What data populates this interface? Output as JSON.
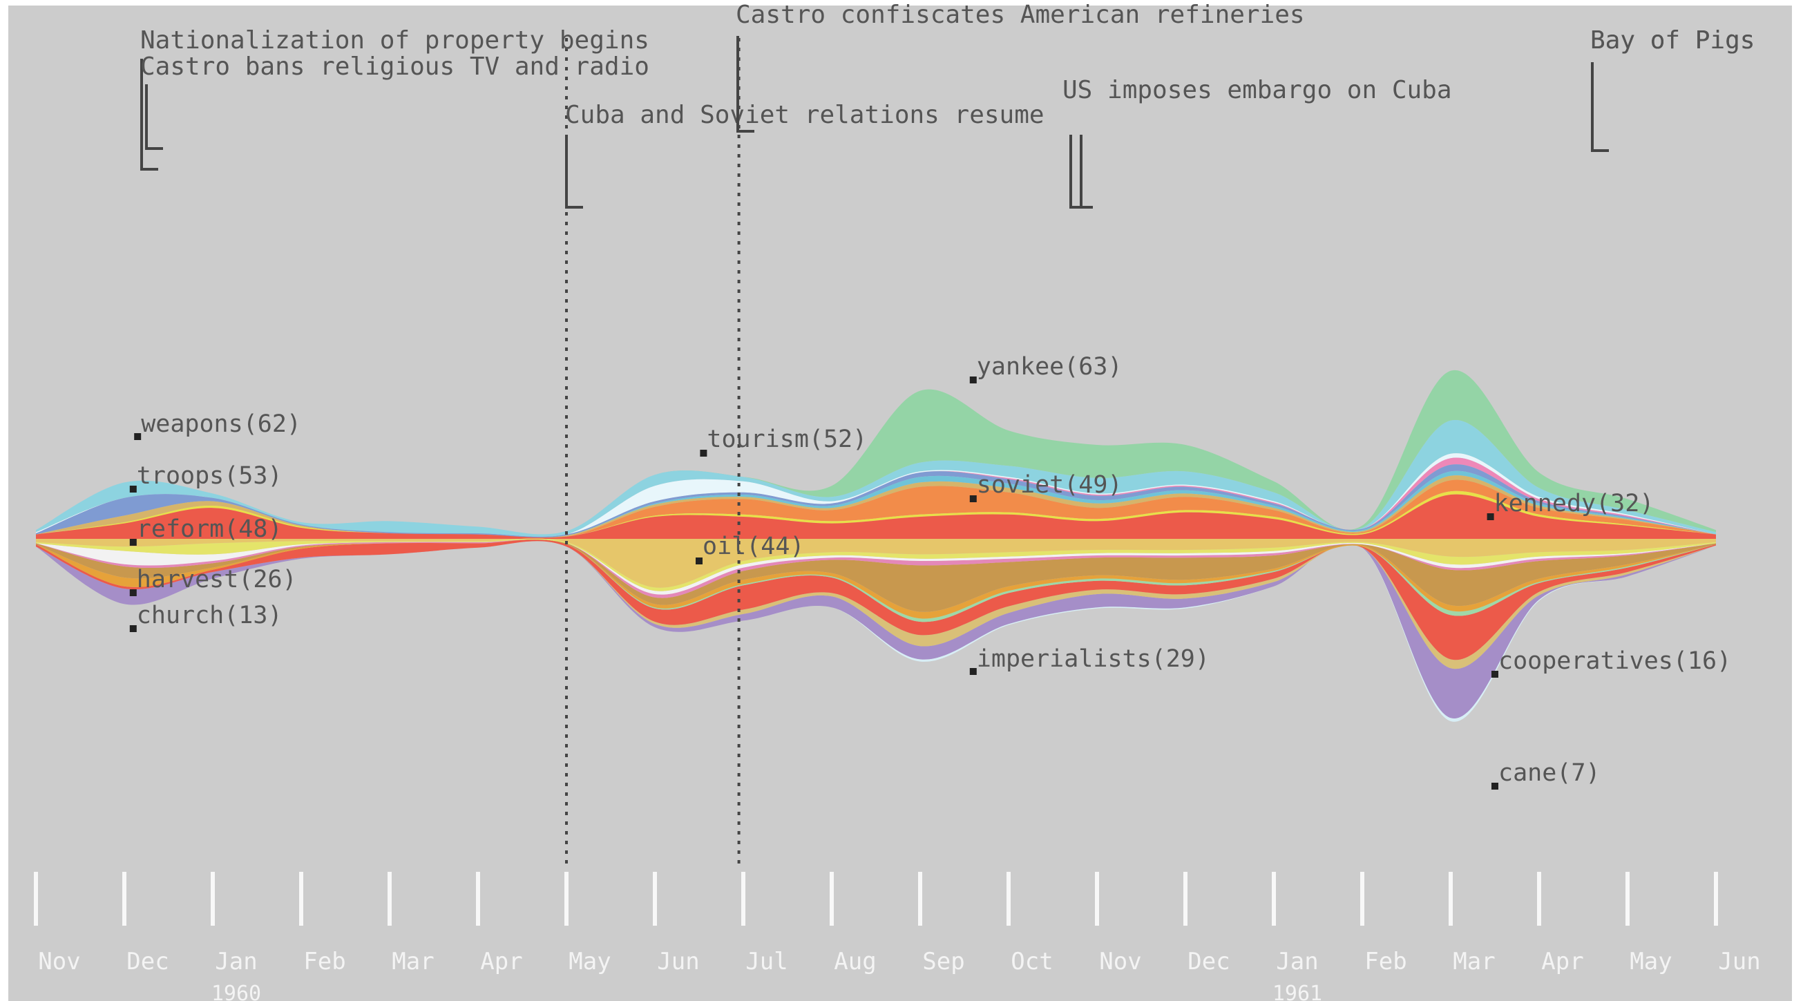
{
  "chart_data": {
    "type": "area",
    "style": "streamgraph",
    "x_unit": "month index (0 = Nov 1959, 19 = Jun 1961)",
    "months": [
      "Nov",
      "Dec",
      "Jan",
      "Feb",
      "Mar",
      "Apr",
      "May",
      "Jun",
      "Jul",
      "Aug",
      "Sep",
      "Oct",
      "Nov",
      "Dec",
      "Jan",
      "Feb",
      "Mar",
      "Apr",
      "May",
      "Jun"
    ],
    "years": [
      {
        "label": "1960",
        "month": 2
      },
      {
        "label": "1961",
        "month": 14
      }
    ],
    "events": [
      {
        "text": "Nationalization of property begins",
        "month": 1.0
      },
      {
        "text": "Castro bans religious TV and radio",
        "month": 1.0
      },
      {
        "text": "Cuba and Soviet relations resume",
        "month": 6.0
      },
      {
        "text": "Castro confiscates American refineries",
        "month": 7.95
      },
      {
        "text": "US imposes embargo on Cuba",
        "month": 11.7
      },
      {
        "text": "Bay of Pigs",
        "month": 17.4
      }
    ],
    "event_tail_partial": "Bay of Pigs ",
    "markers": [
      {
        "month": 6.0,
        "style": "dotted"
      },
      {
        "month": 7.95,
        "style": "dotted"
      }
    ],
    "term_labels": [
      {
        "text": "weapons(62)",
        "month": 1.15
      },
      {
        "text": "troops(53)",
        "month": 1.1
      },
      {
        "text": "reform(48)",
        "month": 1.1
      },
      {
        "text": "harvest(26)",
        "month": 1.1
      },
      {
        "text": "church(13)",
        "month": 1.1
      },
      {
        "text": "tourism(52)",
        "month": 7.55
      },
      {
        "text": "oil(44)",
        "month": 7.5
      },
      {
        "text": "yankee(63)",
        "month": 10.6
      },
      {
        "text": "soviet(49)",
        "month": 10.6
      },
      {
        "text": "imperialists(29)",
        "month": 10.6
      },
      {
        "text": "kennedy(32)",
        "month": 16.45
      },
      {
        "text": "cooperatives(16)",
        "month": 16.5
      },
      {
        "text": "cane(7)",
        "month": 16.5
      }
    ],
    "series_above": [
      {
        "name": "yankee",
        "color": "#94d4a6",
        "values": [
          0,
          0,
          0,
          0,
          0,
          0,
          0,
          0,
          0,
          10,
          65,
          32,
          30,
          24,
          10,
          2,
          45,
          14,
          10,
          2
        ]
      },
      {
        "name": "weapons",
        "color": "#8dd3e0",
        "values": [
          2,
          14,
          4,
          2,
          10,
          6,
          3,
          10,
          4,
          4,
          8,
          10,
          14,
          12,
          8,
          1,
          30,
          8,
          4,
          2
        ]
      },
      {
        "name": "tourism",
        "color": "#e8f6fb",
        "values": [
          1,
          0,
          0,
          0,
          0,
          0,
          0,
          14,
          10,
          2,
          1,
          1,
          1,
          1,
          1,
          0,
          4,
          2,
          1,
          0
        ]
      },
      {
        "name": "kennedy",
        "color": "#ee88b8",
        "values": [
          0,
          0,
          0,
          0,
          0,
          0,
          0,
          0,
          0,
          0,
          0,
          1,
          1,
          1,
          1,
          0,
          6,
          2,
          1,
          0
        ]
      },
      {
        "name": "troops",
        "color": "#7f9bd2",
        "values": [
          1,
          16,
          3,
          1,
          1,
          1,
          1,
          2,
          2,
          2,
          4,
          4,
          4,
          3,
          2,
          1,
          6,
          2,
          1,
          0
        ]
      },
      {
        "name": "aqua",
        "color": "#6fc3d8",
        "values": [
          0,
          0,
          0,
          0,
          0,
          0,
          0,
          1,
          2,
          2,
          5,
          4,
          3,
          3,
          2,
          1,
          4,
          2,
          1,
          0
        ]
      },
      {
        "name": "tan",
        "color": "#d6b46a",
        "values": [
          0,
          6,
          4,
          1,
          0,
          0,
          1,
          2,
          2,
          2,
          4,
          4,
          4,
          3,
          2,
          1,
          4,
          2,
          1,
          0
        ]
      },
      {
        "name": "soviet",
        "color": "#f28c4a",
        "values": [
          0,
          0,
          0,
          0,
          0,
          0,
          0,
          8,
          14,
          10,
          25,
          18,
          10,
          12,
          6,
          1,
          10,
          6,
          4,
          0
        ]
      },
      {
        "name": "yellow",
        "color": "#e8e048",
        "values": [
          0,
          1,
          2,
          1,
          0,
          0,
          0,
          1,
          2,
          2,
          2,
          2,
          2,
          2,
          2,
          1,
          3,
          2,
          1,
          0
        ]
      },
      {
        "name": "reform",
        "color": "#ec5a4a",
        "values": [
          4,
          14,
          28,
          10,
          5,
          4,
          2,
          20,
          20,
          14,
          20,
          22,
          16,
          24,
          18,
          4,
          40,
          20,
          12,
          4
        ]
      }
    ],
    "series_below": [
      {
        "name": "oil",
        "color": "#e6c66a",
        "values": [
          3,
          7,
          4,
          2,
          2,
          2,
          3,
          44,
          20,
          12,
          14,
          12,
          10,
          10,
          8,
          3,
          16,
          12,
          10,
          3
        ]
      },
      {
        "name": "lime",
        "color": "#e4e46a",
        "values": [
          1,
          4,
          10,
          3,
          1,
          1,
          1,
          3,
          3,
          3,
          4,
          4,
          3,
          3,
          3,
          1,
          7,
          4,
          3,
          1
        ]
      },
      {
        "name": "harvest",
        "color": "#f2f2f2",
        "values": [
          0,
          12,
          6,
          1,
          0,
          0,
          0,
          3,
          3,
          2,
          2,
          2,
          2,
          2,
          2,
          1,
          3,
          2,
          1,
          0
        ]
      },
      {
        "name": "pink",
        "color": "#e488b8",
        "values": [
          0,
          2,
          2,
          1,
          1,
          1,
          0,
          3,
          3,
          2,
          4,
          3,
          2,
          2,
          2,
          0,
          2,
          2,
          1,
          0
        ]
      },
      {
        "name": "imperialists",
        "color": "#c8984e",
        "values": [
          1,
          10,
          4,
          1,
          0,
          0,
          1,
          6,
          8,
          12,
          42,
          22,
          16,
          20,
          12,
          1,
          32,
          16,
          8,
          1
        ],
        "label": "imperialists(29)"
      },
      {
        "name": "church",
        "color": "#e6a23a",
        "values": [
          0,
          8,
          2,
          1,
          0,
          0,
          0,
          3,
          4,
          3,
          6,
          4,
          3,
          3,
          2,
          1,
          5,
          3,
          2,
          0
        ]
      },
      {
        "name": "mint",
        "color": "#9fd8a8",
        "values": [
          0,
          0,
          0,
          0,
          0,
          0,
          0,
          1,
          1,
          1,
          3,
          2,
          2,
          2,
          1,
          0,
          4,
          1,
          1,
          0
        ]
      },
      {
        "name": "red2",
        "color": "#ec5a4a",
        "values": [
          2,
          2,
          2,
          8,
          10,
          4,
          2,
          12,
          22,
          14,
          12,
          12,
          8,
          8,
          6,
          1,
          40,
          8,
          4,
          1
        ]
      },
      {
        "name": "cooperatives",
        "color": "#d9c078",
        "values": [
          0,
          0,
          0,
          0,
          0,
          0,
          0,
          2,
          4,
          3,
          10,
          6,
          4,
          4,
          3,
          0,
          8,
          3,
          2,
          0
        ]
      },
      {
        "name": "cane",
        "color": "#a58ec8",
        "values": [
          0,
          14,
          6,
          1,
          0,
          0,
          0,
          3,
          6,
          10,
          12,
          10,
          12,
          8,
          4,
          0,
          45,
          4,
          2,
          0
        ]
      },
      {
        "name": "pale",
        "color": "#d8eef6",
        "values": [
          0,
          0,
          0,
          0,
          0,
          0,
          0,
          0,
          0,
          0,
          2,
          1,
          1,
          1,
          0,
          0,
          3,
          1,
          0,
          0
        ]
      }
    ]
  }
}
